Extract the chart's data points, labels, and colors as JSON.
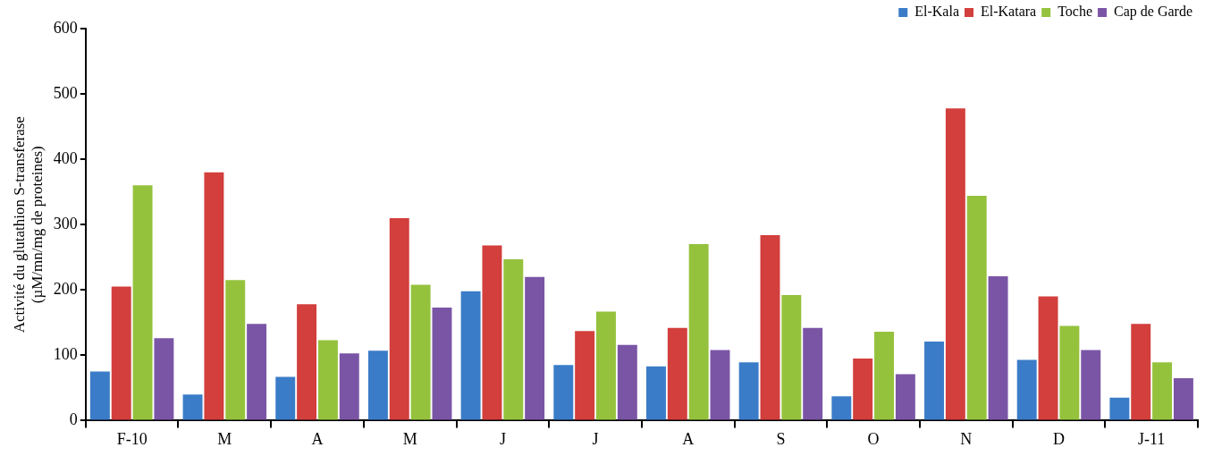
{
  "chart_data": {
    "type": "bar",
    "ylabel": "Activité du glutathion S-transferase\n(µM/mn/mg de proteines)",
    "categories": [
      "F-10",
      "M",
      "A",
      "M",
      "J",
      "J",
      "A",
      "S",
      "O",
      "N",
      "D",
      "J-11"
    ],
    "series": [
      {
        "name": "El-Kala",
        "color": "#3a7cc8",
        "values": [
          75,
          40,
          67,
          107,
          198,
          85,
          83,
          89,
          37,
          121,
          93,
          35
        ]
      },
      {
        "name": "El-Katara",
        "color": "#d23f3c",
        "values": [
          205,
          380,
          178,
          310,
          268,
          137,
          142,
          284,
          95,
          478,
          190,
          148
        ]
      },
      {
        "name": "Toche",
        "color": "#95c23d",
        "values": [
          360,
          215,
          123,
          208,
          247,
          167,
          270,
          192,
          136,
          344,
          145,
          89
        ]
      },
      {
        "name": "Cap de Garde",
        "color": "#7a55a5",
        "values": [
          126,
          148,
          103,
          173,
          220,
          116,
          108,
          142,
          71,
          221,
          108,
          65
        ]
      }
    ],
    "ylim": [
      0,
      600
    ],
    "yticks": [
      0,
      100,
      200,
      300,
      400,
      500,
      600
    ],
    "grid": false,
    "legend": "top right"
  }
}
